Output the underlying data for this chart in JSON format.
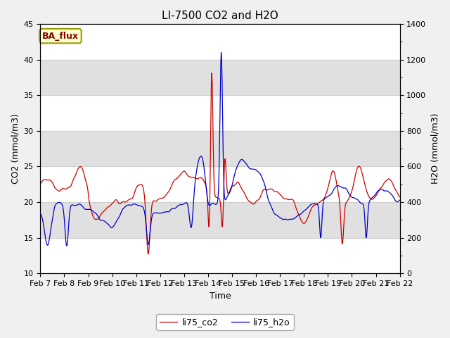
{
  "title": "LI-7500 CO2 and H2O",
  "xlabel": "Time",
  "ylabel_left": "CO2 (mmol/m3)",
  "ylabel_right": "H2O (mmol/m3)",
  "ylim_left": [
    10,
    45
  ],
  "ylim_right": [
    0,
    1400
  ],
  "yticks_left": [
    10,
    15,
    20,
    25,
    30,
    35,
    40,
    45
  ],
  "yticks_right": [
    0,
    200,
    400,
    600,
    800,
    1000,
    1200,
    1400
  ],
  "x_labels": [
    "Feb 7",
    "Feb 8",
    "Feb 9",
    "Feb 10",
    "Feb 11",
    "Feb 12",
    "Feb 13",
    "Feb 14",
    "Feb 15",
    "Feb 16",
    "Feb 17",
    "Feb 18",
    "Feb 19",
    "Feb 20",
    "Feb 21",
    "Feb 22"
  ],
  "legend_labels": [
    "li75_co2",
    "li75_h2o"
  ],
  "co2_color": "#cc0000",
  "h2o_color": "#0000cc",
  "annotation_text": "BA_flux",
  "annotation_bg": "#ffffcc",
  "annotation_border": "#999900",
  "annotation_text_color": "#880000",
  "background_color": "#f0f0f0",
  "plot_bg": "#ffffff",
  "band_color": "#e0e0e0",
  "grid_color": "#cccccc",
  "title_fontsize": 11,
  "axis_fontsize": 9,
  "tick_fontsize": 8,
  "legend_fontsize": 9
}
